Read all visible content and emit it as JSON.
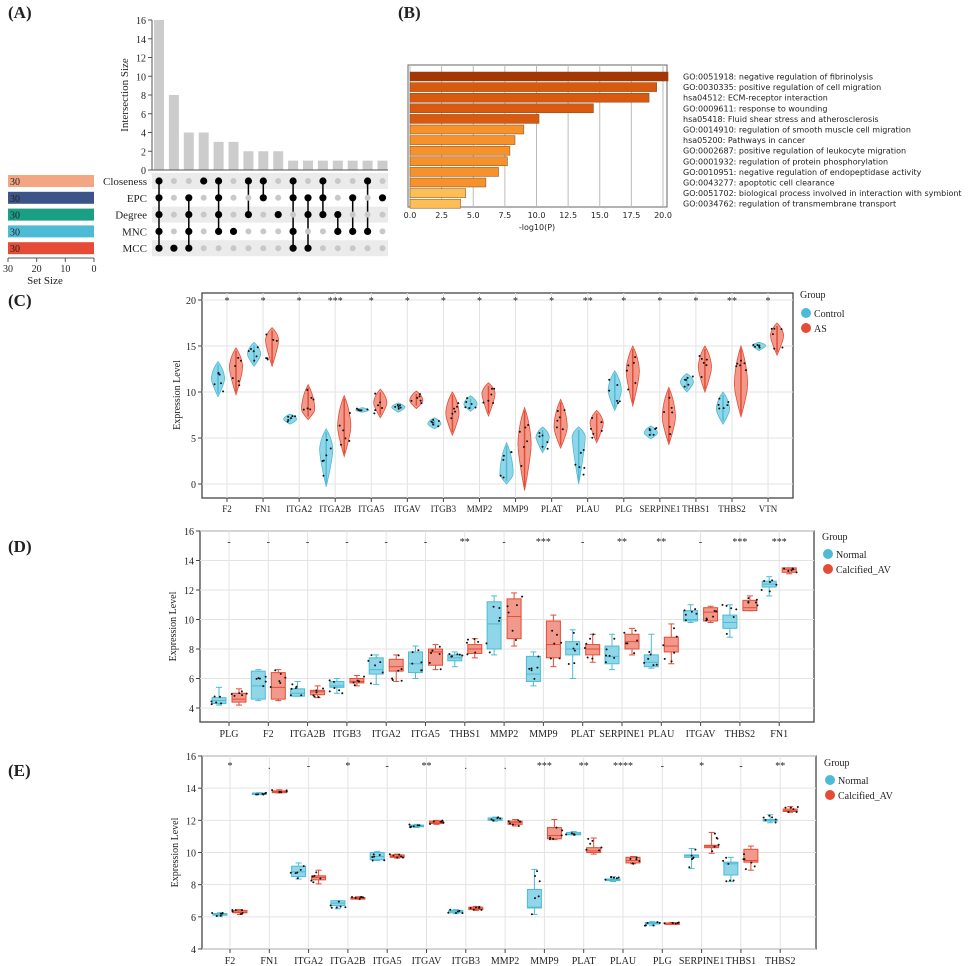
{
  "panel_labels": [
    "(A)",
    "(B)",
    "(C)",
    "(D)",
    "(E)"
  ],
  "colors": {
    "control": "#4dbbd5",
    "control_fill": "#8fd6e8",
    "case": "#e64b35",
    "case_fill": "#f19a8b",
    "grid": "#e3e3e3",
    "dot_active": "#000000",
    "dot_inactive": "#c8c8c8",
    "bar_gray": "#cccccc",
    "enrich": [
      "#a63603",
      "#d9590f",
      "#d9590f",
      "#d9590f",
      "#d9590f",
      "#f7922a",
      "#f7922a",
      "#f7922a",
      "#f7922a",
      "#f7922a",
      "#f7922a",
      "#fdbf55",
      "#fdbf55"
    ]
  },
  "chart_data": [
    {
      "type": "bar",
      "kind": "upset",
      "ylabel": "Intersection Size",
      "ylim": [
        0,
        16
      ],
      "yticks": [
        0,
        2,
        4,
        6,
        8,
        10,
        12,
        14,
        16
      ],
      "values": [
        16,
        8,
        4,
        4,
        3,
        3,
        2,
        2,
        2,
        1,
        1,
        1,
        1,
        1,
        1,
        1
      ],
      "sets": [
        {
          "name": "Closeness",
          "size": 30,
          "size_label": "30",
          "color": "#f4a582"
        },
        {
          "name": "EPC",
          "size": 30,
          "size_label": "30",
          "color": "#3c5488"
        },
        {
          "name": "Degree",
          "size": 30,
          "size_label": "30",
          "color": "#1a9f85"
        },
        {
          "name": "MNC",
          "size": 30,
          "size_label": "30",
          "color": "#4dbbd5"
        },
        {
          "name": "MCC",
          "size": 30,
          "size_label": "30",
          "color": "#e64b35"
        }
      ],
      "membership": [
        [
          0,
          1,
          2,
          3,
          4
        ],
        [
          4
        ],
        [
          1,
          2,
          3,
          4
        ],
        [
          0
        ],
        [
          0,
          1,
          2,
          3
        ],
        [
          3
        ],
        [
          0,
          2
        ],
        [
          0,
          1
        ],
        [
          2
        ],
        [
          0,
          1,
          3,
          4
        ],
        [
          1,
          2,
          4
        ],
        [
          0,
          1,
          2
        ],
        [
          2,
          3
        ],
        [
          1,
          3
        ],
        [
          0,
          3
        ],
        [
          1
        ]
      ],
      "set_size_label": "Set Size",
      "set_size_ticks": [
        "30",
        "20",
        "10",
        "0"
      ]
    },
    {
      "type": "bar",
      "kind": "horizontal",
      "xlabel": "-log10(P)",
      "xlim": [
        0,
        21
      ],
      "xticks": [
        "0.0",
        "2.5",
        "5.0",
        "7.5",
        "10.0",
        "12.5",
        "15.0",
        "17.5",
        "20.0"
      ],
      "categories": [
        "GO:0051918: negative regulation of fibrinolysis",
        "GO:0030335: positive regulation of cell migration",
        "hsa04512: ECM-receptor interaction",
        "GO:0009611: response to wounding",
        "hsa05418: Fluid shear stress and atherosclerosis",
        "GO:0014910: regulation of smooth muscle cell migration",
        "hsa05200: Pathways in cancer",
        "GO:0002687: positive regulation of leukocyte migration",
        "GO:0001932: regulation of protein phosphorylation",
        "GO:0010951: negative regulation of endopeptidase activity",
        "GO:0043277: apoptotic cell clearance",
        "GO:0051702: biological process involved in interaction with symbiont",
        "GO:0034762: regulation of transmembrane transport"
      ],
      "values": [
        20.4,
        19.5,
        18.9,
        14.5,
        10.2,
        9.0,
        8.3,
        7.9,
        7.7,
        7.0,
        6.0,
        4.4,
        4.0
      ]
    },
    {
      "type": "violin",
      "ylabel": "Expression Level",
      "ylim": [
        -1,
        20.5
      ],
      "yticks": [
        "0",
        "5",
        "10",
        "15",
        "20"
      ],
      "legend_title": "Group",
      "legend": [
        "Control",
        "AS"
      ],
      "legend_position": "right",
      "categories": [
        "F2",
        "FN1",
        "ITGA2",
        "ITGA2B",
        "ITGA5",
        "ITGAV",
        "ITGB3",
        "MMP2",
        "MMP9",
        "PLAT",
        "PLAU",
        "PLG",
        "SERPINE1",
        "THBS1",
        "THBS2",
        "VTN"
      ],
      "significance": [
        "*",
        "*",
        "*",
        "***",
        "*",
        "*",
        "*",
        "*",
        "*",
        "*",
        "**",
        "*",
        "*",
        "*",
        "**",
        "*"
      ],
      "series": [
        {
          "name": "Control",
          "min": [
            9.5,
            12.8,
            6.5,
            -0.3,
            7.8,
            7.8,
            6.0,
            7.9,
            0.0,
            3.4,
            0.0,
            8.0,
            4.9,
            10.0,
            6.5,
            14.5
          ],
          "median": [
            11.3,
            14.0,
            7.0,
            3.5,
            8.0,
            8.3,
            6.5,
            8.6,
            1.0,
            5.0,
            5.0,
            10.0,
            5.5,
            11.0,
            8.0,
            15.0
          ],
          "max": [
            13.3,
            15.4,
            7.6,
            6.0,
            8.3,
            8.8,
            7.2,
            9.6,
            4.5,
            6.2,
            6.2,
            12.3,
            6.3,
            12.0,
            10.0,
            15.4
          ]
        },
        {
          "name": "AS",
          "min": [
            9.7,
            12.8,
            7.0,
            3.0,
            7.2,
            8.2,
            5.3,
            7.4,
            -0.7,
            3.9,
            4.5,
            8.5,
            4.3,
            10.0,
            7.3,
            14.0
          ],
          "median": [
            12.5,
            15.5,
            8.0,
            6.0,
            8.7,
            9.0,
            7.5,
            9.7,
            4.0,
            6.0,
            6.5,
            12.0,
            7.0,
            12.5,
            10.5,
            16.0
          ],
          "max": [
            14.8,
            17.0,
            10.8,
            9.6,
            10.3,
            10.1,
            10.0,
            11.0,
            8.3,
            9.2,
            8.0,
            15.0,
            10.5,
            15.0,
            15.0,
            17.5
          ]
        }
      ]
    },
    {
      "type": "box",
      "ylabel": "Expression Level",
      "ylim": [
        3,
        16
      ],
      "yticks": [
        "4",
        "6",
        "8",
        "10",
        "12",
        "14",
        "16"
      ],
      "legend_title": "Group",
      "legend": [
        "Normal",
        "Calcified_AV"
      ],
      "legend_position": "right",
      "categories": [
        "PLG",
        "F2",
        "ITGA2B",
        "ITGB3",
        "ITGA2",
        "ITGA5",
        "THBS1",
        "MMP2",
        "MMP9",
        "PLAT",
        "SERPINE1",
        "PLAU",
        "ITGAV",
        "THBS2",
        "FN1"
      ],
      "significance": [
        "-",
        "-",
        "-",
        "-",
        "-",
        "-",
        "**",
        "-",
        "***",
        "-",
        "**",
        "**",
        "-",
        "***",
        "***"
      ],
      "series": [
        {
          "name": "Normal",
          "stats": [
            [
              4.2,
              4.3,
              4.5,
              4.7,
              5.4
            ],
            [
              4.5,
              4.6,
              5.5,
              6.5,
              6.6
            ],
            [
              4.8,
              4.8,
              5.0,
              5.3,
              5.8
            ],
            [
              5.0,
              5.4,
              5.5,
              5.8,
              6.0
            ],
            [
              5.6,
              6.3,
              6.6,
              7.4,
              7.6
            ],
            [
              6.0,
              6.4,
              7.0,
              7.8,
              8.2
            ],
            [
              6.8,
              7.2,
              7.4,
              7.6,
              7.8
            ],
            [
              7.6,
              8.0,
              9.7,
              11.2,
              11.6
            ],
            [
              5.5,
              5.8,
              6.3,
              7.5,
              7.8
            ],
            [
              6.0,
              7.6,
              8.0,
              8.5,
              9.3
            ],
            [
              6.6,
              7.0,
              7.5,
              8.2,
              9.0
            ],
            [
              6.7,
              6.8,
              7.1,
              7.6,
              9.0
            ],
            [
              9.8,
              9.9,
              10.0,
              10.6,
              11.0
            ],
            [
              8.8,
              9.4,
              9.8,
              10.3,
              11.0
            ],
            [
              11.6,
              12.2,
              12.4,
              12.6,
              12.9
            ]
          ]
        },
        {
          "name": "Calcified_AV",
          "stats": [
            [
              4.2,
              4.4,
              4.6,
              5.0,
              5.3
            ],
            [
              4.5,
              4.6,
              5.4,
              6.4,
              6.6
            ],
            [
              4.7,
              4.9,
              5.1,
              5.2,
              5.5
            ],
            [
              5.5,
              5.7,
              5.8,
              6.0,
              6.2
            ],
            [
              5.8,
              6.5,
              6.8,
              7.3,
              7.6
            ],
            [
              6.6,
              6.9,
              7.8,
              8.0,
              8.3
            ],
            [
              7.4,
              7.7,
              8.0,
              8.3,
              8.7
            ],
            [
              8.2,
              8.7,
              10.2,
              11.4,
              11.8
            ],
            [
              6.8,
              7.4,
              8.3,
              9.9,
              10.3
            ],
            [
              7.1,
              7.6,
              8.0,
              8.3,
              9.0
            ],
            [
              7.6,
              8.0,
              8.5,
              9.0,
              9.4
            ],
            [
              7.0,
              7.8,
              8.2,
              8.8,
              9.7
            ],
            [
              9.8,
              9.9,
              10.5,
              10.8,
              10.9
            ],
            [
              10.6,
              10.6,
              10.8,
              11.3,
              11.6
            ],
            [
              13.1,
              13.2,
              13.4,
              13.5,
              13.5
            ]
          ]
        }
      ]
    },
    {
      "type": "box",
      "ylabel": "Expression Level",
      "ylim": [
        4,
        16
      ],
      "yticks": [
        "4",
        "6",
        "8",
        "10",
        "12",
        "14",
        "16"
      ],
      "legend_title": "Group",
      "legend": [
        "Normal",
        "Calcified_AV"
      ],
      "legend_position": "right",
      "categories": [
        "F2",
        "FN1",
        "ITGA2",
        "ITGA2B",
        "ITGA5",
        "ITGAV",
        "ITGB3",
        "MMP2",
        "MMP9",
        "PLAT",
        "PLAU",
        "PLG",
        "SERPINE1",
        "THBS1",
        "THBS2"
      ],
      "significance": [
        "*",
        ".",
        "-",
        "*",
        "-",
        "**",
        ".",
        ".",
        "***",
        "**",
        "****",
        "-",
        "*",
        "-",
        "**"
      ],
      "series": [
        {
          "name": "Normal",
          "stats": [
            [
              6.05,
              6.1,
              6.15,
              6.2,
              6.25
            ],
            [
              13.6,
              13.62,
              13.65,
              13.7,
              13.72
            ],
            [
              8.35,
              8.5,
              8.8,
              9.15,
              9.35
            ],
            [
              6.5,
              6.7,
              6.85,
              7.0,
              7.0
            ],
            [
              9.5,
              9.55,
              9.75,
              10.0,
              10.05
            ],
            [
              11.55,
              11.6,
              11.65,
              11.7,
              11.75
            ],
            [
              6.2,
              6.25,
              6.35,
              6.4,
              6.45
            ],
            [
              11.95,
              12.0,
              12.05,
              12.15,
              12.2
            ],
            [
              6.15,
              6.55,
              6.6,
              7.7,
              8.95
            ],
            [
              11.1,
              11.1,
              11.15,
              11.25,
              11.3
            ],
            [
              8.2,
              8.25,
              8.3,
              8.35,
              8.5
            ],
            [
              5.45,
              5.55,
              5.6,
              5.65,
              5.7
            ],
            [
              9.0,
              9.7,
              9.8,
              9.85,
              10.25
            ],
            [
              8.2,
              8.6,
              9.3,
              9.4,
              9.7
            ],
            [
              11.85,
              11.95,
              12.0,
              12.05,
              12.35
            ]
          ]
        },
        {
          "name": "Calcified_AV",
          "stats": [
            [
              6.15,
              6.25,
              6.3,
              6.4,
              6.45
            ],
            [
              13.7,
              13.72,
              13.78,
              13.83,
              13.9
            ],
            [
              8.05,
              8.3,
              8.45,
              8.55,
              8.9
            ],
            [
              7.1,
              7.1,
              7.15,
              7.2,
              7.25
            ],
            [
              9.65,
              9.7,
              9.75,
              9.85,
              9.9
            ],
            [
              11.75,
              11.8,
              11.85,
              11.95,
              12.0
            ],
            [
              6.4,
              6.45,
              6.5,
              6.6,
              6.65
            ],
            [
              11.65,
              11.75,
              11.85,
              11.95,
              12.05
            ],
            [
              10.8,
              10.85,
              11.05,
              11.55,
              12.05
            ],
            [
              9.9,
              10.0,
              10.1,
              10.3,
              10.9
            ],
            [
              9.3,
              9.35,
              9.5,
              9.7,
              9.75
            ],
            [
              5.55,
              5.58,
              5.6,
              5.62,
              5.65
            ],
            [
              9.95,
              10.3,
              10.4,
              10.45,
              11.25
            ],
            [
              8.9,
              9.4,
              9.5,
              10.2,
              10.4
            ],
            [
              12.5,
              12.55,
              12.6,
              12.7,
              12.85
            ]
          ]
        }
      ]
    }
  ]
}
